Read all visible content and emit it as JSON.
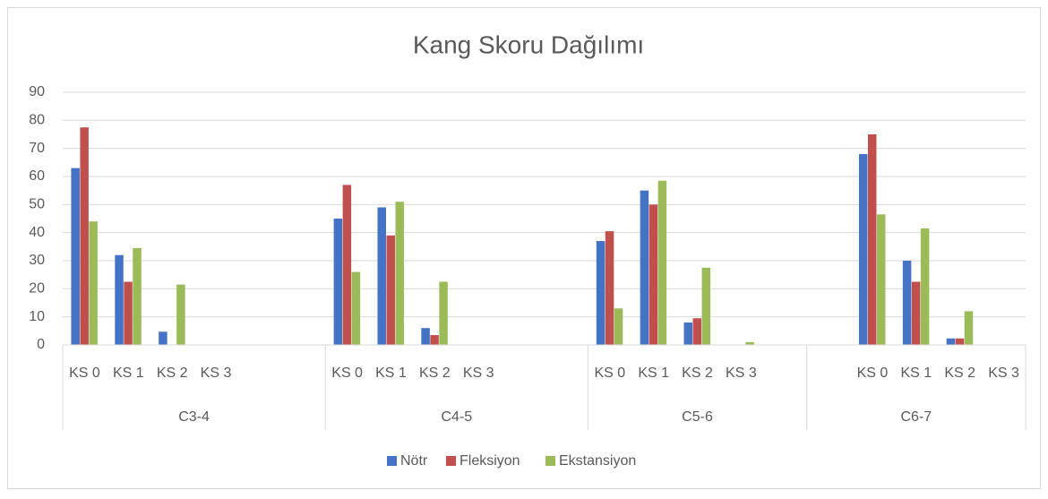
{
  "chart_data": {
    "type": "bar",
    "title": "Kang Skoru Dağılımı",
    "groups": [
      {
        "name": "C3-4",
        "categories": [
          "KS 0",
          "KS 1",
          "KS 2",
          "KS 3",
          null,
          null
        ]
      },
      {
        "name": "C4-5",
        "categories": [
          "KS 0",
          "KS 1",
          "KS 2",
          "KS 3",
          null,
          null
        ]
      },
      {
        "name": "C5-6",
        "categories": [
          "KS 0",
          "KS 1",
          "KS 2",
          "KS 3",
          null
        ]
      },
      {
        "name": "C6-7",
        "categories": [
          null,
          "KS 0",
          "KS 1",
          "KS 2",
          "KS 3"
        ]
      }
    ],
    "series": [
      {
        "name": "Nötr",
        "color": "#4472c4",
        "values": [
          63,
          32,
          4.7,
          0,
          null,
          null,
          45,
          49,
          6,
          0,
          null,
          null,
          37,
          55,
          8,
          0,
          null,
          null,
          68,
          30,
          2.3,
          0
        ]
      },
      {
        "name": "Fleksiyon",
        "color": "#c0504d",
        "values": [
          77.5,
          22.5,
          0,
          0,
          null,
          null,
          57,
          39,
          3.5,
          0,
          null,
          null,
          40.5,
          50,
          9.5,
          0,
          null,
          null,
          75,
          22.5,
          2.3,
          0
        ]
      },
      {
        "name": "Ekstansiyon",
        "color": "#9bbb59",
        "values": [
          44,
          34.5,
          21.5,
          0,
          null,
          null,
          26,
          51,
          22.5,
          0,
          null,
          null,
          13,
          58.5,
          27.5,
          1,
          null,
          null,
          46.5,
          41.5,
          12,
          0
        ]
      }
    ],
    "ylim": [
      0,
      90
    ],
    "yticks": [
      0,
      10,
      20,
      30,
      40,
      50,
      60,
      70,
      80,
      90
    ],
    "grid": true,
    "legend": "bottom"
  }
}
